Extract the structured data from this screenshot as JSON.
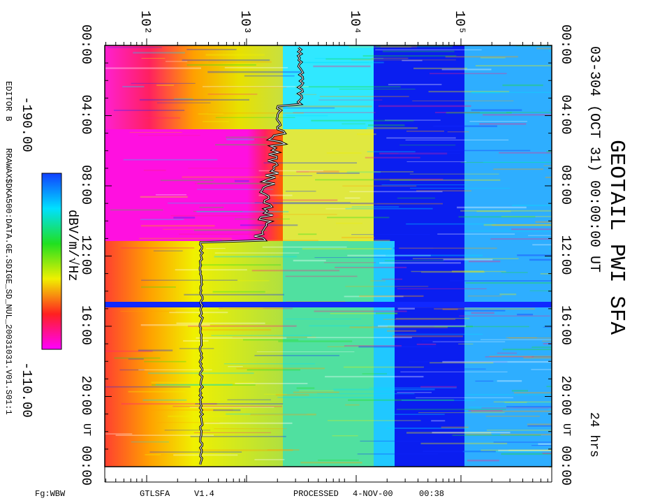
{
  "title": "GEOTAIL PWI SFA",
  "subtitle": "03-304 (OCT 31) 00:00:00 UT",
  "duration": "24 hrs",
  "frequency_ticks": [
    "10²",
    "10³",
    "10⁴",
    "10⁵"
  ],
  "time_ticks": [
    "00:00",
    "04:00",
    "08:00",
    "12:00",
    "16:00",
    "20:00",
    "00:00"
  ],
  "ut_label": "UT",
  "colorbar": {
    "low_label": "-190.00",
    "high_label": "-110.00",
    "unit": "dBV/m/√Hz"
  },
  "editor": "EDITOR B",
  "file_path": "RRAWAX$DKA500:DATA.GE.SDIGE_SD_NUL_20031031.V01.S01:1",
  "footer": {
    "fg": "Fg:WBW",
    "program": "GTLSFA",
    "version": "V1.4",
    "processed": "PROCESSED",
    "date": "4-NOV-00",
    "time": "00:38"
  }
}
